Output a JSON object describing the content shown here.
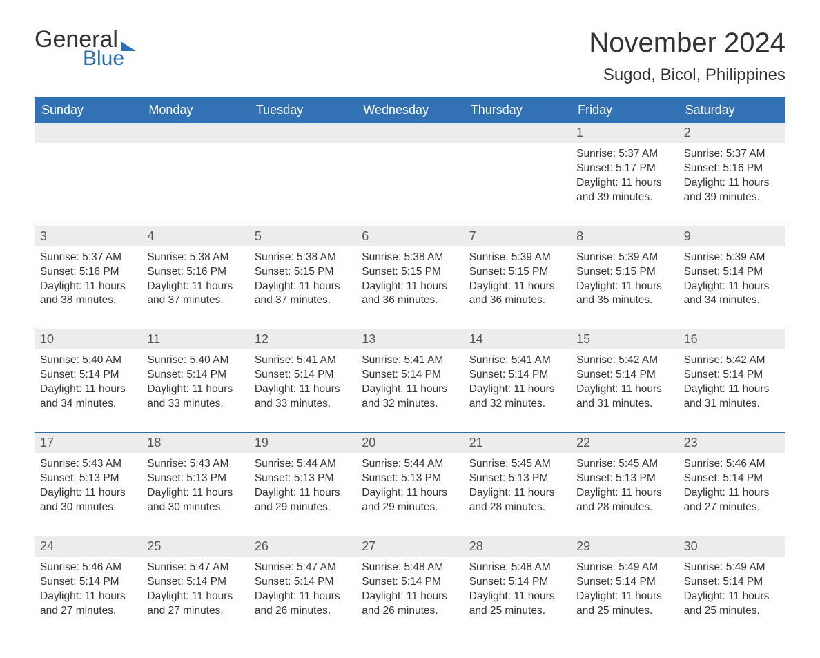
{
  "logo": {
    "word1": "General",
    "word2": "Blue"
  },
  "title": "November 2024",
  "location": "Sugod, Bicol, Philippines",
  "colors": {
    "header_bg": "#3371b5",
    "header_text": "#ffffff",
    "row_border": "#2d6db0",
    "daynum_bg": "#ececec",
    "text": "#333333",
    "logo_blue": "#2d6db0",
    "background": "#ffffff"
  },
  "fonts": {
    "title_size_pt": 40,
    "location_size_pt": 24,
    "header_size_pt": 18,
    "daynum_size_pt": 18,
    "body_size_pt": 15.5
  },
  "dayNames": [
    "Sunday",
    "Monday",
    "Tuesday",
    "Wednesday",
    "Thursday",
    "Friday",
    "Saturday"
  ],
  "weeks": [
    [
      null,
      null,
      null,
      null,
      null,
      {
        "n": "1",
        "sr": "Sunrise: 5:37 AM",
        "ss": "Sunset: 5:17 PM",
        "d1": "Daylight: 11 hours",
        "d2": "and 39 minutes."
      },
      {
        "n": "2",
        "sr": "Sunrise: 5:37 AM",
        "ss": "Sunset: 5:16 PM",
        "d1": "Daylight: 11 hours",
        "d2": "and 39 minutes."
      }
    ],
    [
      {
        "n": "3",
        "sr": "Sunrise: 5:37 AM",
        "ss": "Sunset: 5:16 PM",
        "d1": "Daylight: 11 hours",
        "d2": "and 38 minutes."
      },
      {
        "n": "4",
        "sr": "Sunrise: 5:38 AM",
        "ss": "Sunset: 5:16 PM",
        "d1": "Daylight: 11 hours",
        "d2": "and 37 minutes."
      },
      {
        "n": "5",
        "sr": "Sunrise: 5:38 AM",
        "ss": "Sunset: 5:15 PM",
        "d1": "Daylight: 11 hours",
        "d2": "and 37 minutes."
      },
      {
        "n": "6",
        "sr": "Sunrise: 5:38 AM",
        "ss": "Sunset: 5:15 PM",
        "d1": "Daylight: 11 hours",
        "d2": "and 36 minutes."
      },
      {
        "n": "7",
        "sr": "Sunrise: 5:39 AM",
        "ss": "Sunset: 5:15 PM",
        "d1": "Daylight: 11 hours",
        "d2": "and 36 minutes."
      },
      {
        "n": "8",
        "sr": "Sunrise: 5:39 AM",
        "ss": "Sunset: 5:15 PM",
        "d1": "Daylight: 11 hours",
        "d2": "and 35 minutes."
      },
      {
        "n": "9",
        "sr": "Sunrise: 5:39 AM",
        "ss": "Sunset: 5:14 PM",
        "d1": "Daylight: 11 hours",
        "d2": "and 34 minutes."
      }
    ],
    [
      {
        "n": "10",
        "sr": "Sunrise: 5:40 AM",
        "ss": "Sunset: 5:14 PM",
        "d1": "Daylight: 11 hours",
        "d2": "and 34 minutes."
      },
      {
        "n": "11",
        "sr": "Sunrise: 5:40 AM",
        "ss": "Sunset: 5:14 PM",
        "d1": "Daylight: 11 hours",
        "d2": "and 33 minutes."
      },
      {
        "n": "12",
        "sr": "Sunrise: 5:41 AM",
        "ss": "Sunset: 5:14 PM",
        "d1": "Daylight: 11 hours",
        "d2": "and 33 minutes."
      },
      {
        "n": "13",
        "sr": "Sunrise: 5:41 AM",
        "ss": "Sunset: 5:14 PM",
        "d1": "Daylight: 11 hours",
        "d2": "and 32 minutes."
      },
      {
        "n": "14",
        "sr": "Sunrise: 5:41 AM",
        "ss": "Sunset: 5:14 PM",
        "d1": "Daylight: 11 hours",
        "d2": "and 32 minutes."
      },
      {
        "n": "15",
        "sr": "Sunrise: 5:42 AM",
        "ss": "Sunset: 5:14 PM",
        "d1": "Daylight: 11 hours",
        "d2": "and 31 minutes."
      },
      {
        "n": "16",
        "sr": "Sunrise: 5:42 AM",
        "ss": "Sunset: 5:14 PM",
        "d1": "Daylight: 11 hours",
        "d2": "and 31 minutes."
      }
    ],
    [
      {
        "n": "17",
        "sr": "Sunrise: 5:43 AM",
        "ss": "Sunset: 5:13 PM",
        "d1": "Daylight: 11 hours",
        "d2": "and 30 minutes."
      },
      {
        "n": "18",
        "sr": "Sunrise: 5:43 AM",
        "ss": "Sunset: 5:13 PM",
        "d1": "Daylight: 11 hours",
        "d2": "and 30 minutes."
      },
      {
        "n": "19",
        "sr": "Sunrise: 5:44 AM",
        "ss": "Sunset: 5:13 PM",
        "d1": "Daylight: 11 hours",
        "d2": "and 29 minutes."
      },
      {
        "n": "20",
        "sr": "Sunrise: 5:44 AM",
        "ss": "Sunset: 5:13 PM",
        "d1": "Daylight: 11 hours",
        "d2": "and 29 minutes."
      },
      {
        "n": "21",
        "sr": "Sunrise: 5:45 AM",
        "ss": "Sunset: 5:13 PM",
        "d1": "Daylight: 11 hours",
        "d2": "and 28 minutes."
      },
      {
        "n": "22",
        "sr": "Sunrise: 5:45 AM",
        "ss": "Sunset: 5:13 PM",
        "d1": "Daylight: 11 hours",
        "d2": "and 28 minutes."
      },
      {
        "n": "23",
        "sr": "Sunrise: 5:46 AM",
        "ss": "Sunset: 5:14 PM",
        "d1": "Daylight: 11 hours",
        "d2": "and 27 minutes."
      }
    ],
    [
      {
        "n": "24",
        "sr": "Sunrise: 5:46 AM",
        "ss": "Sunset: 5:14 PM",
        "d1": "Daylight: 11 hours",
        "d2": "and 27 minutes."
      },
      {
        "n": "25",
        "sr": "Sunrise: 5:47 AM",
        "ss": "Sunset: 5:14 PM",
        "d1": "Daylight: 11 hours",
        "d2": "and 27 minutes."
      },
      {
        "n": "26",
        "sr": "Sunrise: 5:47 AM",
        "ss": "Sunset: 5:14 PM",
        "d1": "Daylight: 11 hours",
        "d2": "and 26 minutes."
      },
      {
        "n": "27",
        "sr": "Sunrise: 5:48 AM",
        "ss": "Sunset: 5:14 PM",
        "d1": "Daylight: 11 hours",
        "d2": "and 26 minutes."
      },
      {
        "n": "28",
        "sr": "Sunrise: 5:48 AM",
        "ss": "Sunset: 5:14 PM",
        "d1": "Daylight: 11 hours",
        "d2": "and 25 minutes."
      },
      {
        "n": "29",
        "sr": "Sunrise: 5:49 AM",
        "ss": "Sunset: 5:14 PM",
        "d1": "Daylight: 11 hours",
        "d2": "and 25 minutes."
      },
      {
        "n": "30",
        "sr": "Sunrise: 5:49 AM",
        "ss": "Sunset: 5:14 PM",
        "d1": "Daylight: 11 hours",
        "d2": "and 25 minutes."
      }
    ]
  ]
}
